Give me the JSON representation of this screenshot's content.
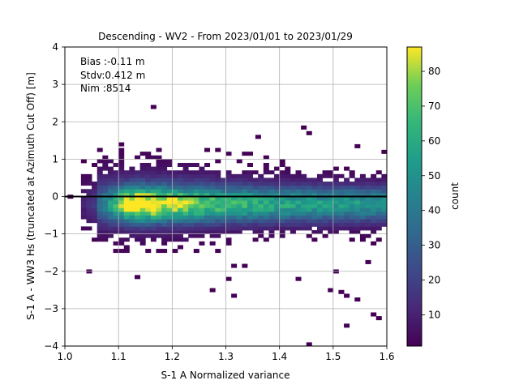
{
  "chart_data": {
    "type": "heatmap",
    "title": "Descending - WV2 - From 2023/01/01 to 2023/01/29",
    "xlabel": "S-1 A Normalized variance",
    "ylabel": "S-1 A - WW3 Hs (truncated at Azimuth Cut Off) [m]",
    "xlim": [
      1.0,
      1.6
    ],
    "ylim": [
      -4,
      4
    ],
    "xticks": [
      "1.0",
      "1.1",
      "1.2",
      "1.3",
      "1.4",
      "1.5",
      "1.6"
    ],
    "yticks": [
      "4",
      "3",
      "2",
      "1",
      "0",
      "−1",
      "−2",
      "−3",
      "−4"
    ],
    "grid": true,
    "stats": [
      "Bias :-0.11 m",
      "Stdv:0.412 m",
      "Nim :8514"
    ],
    "colorbar": {
      "label": "count",
      "colormap": "viridis",
      "range": [
        1,
        87
      ],
      "ticks": [
        "10",
        "20",
        "30",
        "40",
        "50",
        "60",
        "70",
        "80"
      ]
    },
    "zero_line": 0,
    "bin_size": {
      "x": 0.01,
      "y": 0.1
    },
    "density": {
      "peak": {
        "x": 1.14,
        "y": -0.2,
        "count": 87
      },
      "x_range": [
        1.03,
        1.6
      ],
      "y_range": [
        -2.2,
        1.3
      ],
      "outliers": [
        {
          "x": 1.165,
          "y": 2.4
        },
        {
          "x": 1.445,
          "y": 1.85
        },
        {
          "x": 1.455,
          "y": 1.7
        },
        {
          "x": 1.36,
          "y": 1.6
        },
        {
          "x": 1.545,
          "y": 1.35
        },
        {
          "x": 1.595,
          "y": 1.2
        },
        {
          "x": 1.105,
          "y": 1.4
        },
        {
          "x": 1.01,
          "y": 0.0
        },
        {
          "x": 1.045,
          "y": -2.0
        },
        {
          "x": 1.135,
          "y": -2.15
        },
        {
          "x": 1.315,
          "y": -2.65
        },
        {
          "x": 1.275,
          "y": -2.5
        },
        {
          "x": 1.305,
          "y": -2.2
        },
        {
          "x": 1.435,
          "y": -2.2
        },
        {
          "x": 1.505,
          "y": -2.0
        },
        {
          "x": 1.495,
          "y": -2.5
        },
        {
          "x": 1.515,
          "y": -2.55
        },
        {
          "x": 1.525,
          "y": -2.65
        },
        {
          "x": 1.545,
          "y": -2.75
        },
        {
          "x": 1.575,
          "y": -3.15
        },
        {
          "x": 1.585,
          "y": -3.25
        },
        {
          "x": 1.525,
          "y": -3.45
        },
        {
          "x": 1.455,
          "y": -3.95
        },
        {
          "x": 1.565,
          "y": -1.75
        },
        {
          "x": 1.575,
          "y": -1.25
        },
        {
          "x": 1.315,
          "y": -1.85
        },
        {
          "x": 1.335,
          "y": -1.85
        }
      ]
    }
  }
}
